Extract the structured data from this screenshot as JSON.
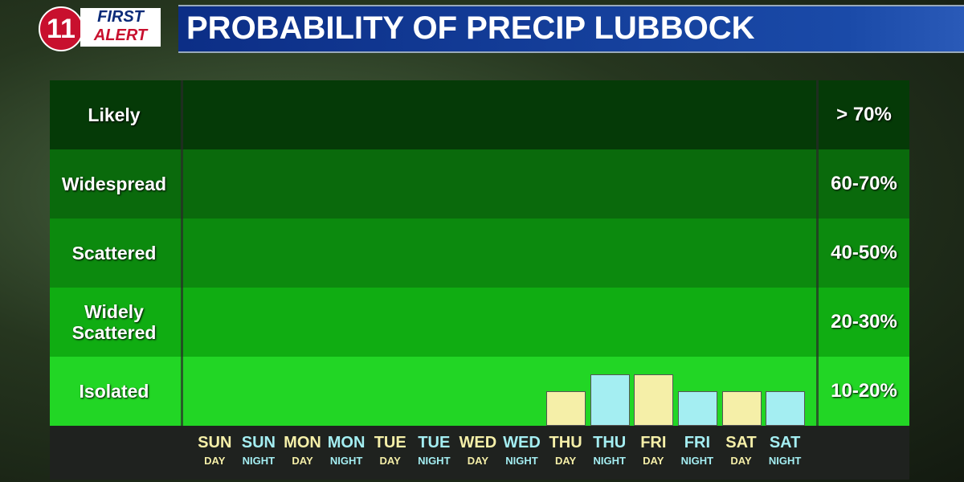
{
  "chart_data": {
    "type": "bar",
    "logo": {
      "number": "11",
      "brand_top": "FIRST",
      "brand_bottom": "ALERT"
    },
    "title": "PROBABILITY OF PRECIP LUBBOCK",
    "bands": [
      {
        "name": "Likely",
        "range": "> 70%",
        "color": "#053a07"
      },
      {
        "name": "Widespread",
        "range": "60-70%",
        "color": "#0a6a0c"
      },
      {
        "name": "Scattered",
        "range": "40-50%",
        "color": "#0c8a0e"
      },
      {
        "name": "Widely Scattered",
        "range": "20-30%",
        "color": "#10ad12"
      },
      {
        "name": "Isolated",
        "range": "10-20%",
        "color": "#22d625"
      }
    ],
    "categories": [
      "SUN",
      "SUN",
      "MON",
      "MON",
      "TUE",
      "TUE",
      "WED",
      "WED",
      "THU",
      "THU",
      "FRI",
      "FRI",
      "SAT",
      "SAT"
    ],
    "periods": [
      "DAY",
      "NIGHT",
      "DAY",
      "NIGHT",
      "DAY",
      "NIGHT",
      "DAY",
      "NIGHT",
      "DAY",
      "NIGHT",
      "DAY",
      "NIGHT",
      "DAY",
      "NIGHT"
    ],
    "values": [
      0,
      0,
      0,
      0,
      0,
      0,
      0,
      0,
      10,
      15,
      15,
      10,
      10,
      10
    ],
    "colors": [
      "#f5efa8",
      "#a4eef2",
      "#f5efa8",
      "#a4eef2",
      "#f5efa8",
      "#a4eef2",
      "#f5efa8",
      "#a4eef2",
      "#f5efa8",
      "#a4eef2",
      "#f5efa8",
      "#a4eef2",
      "#f5efa8",
      "#a4eef2"
    ],
    "ylim": [
      0,
      100
    ]
  }
}
